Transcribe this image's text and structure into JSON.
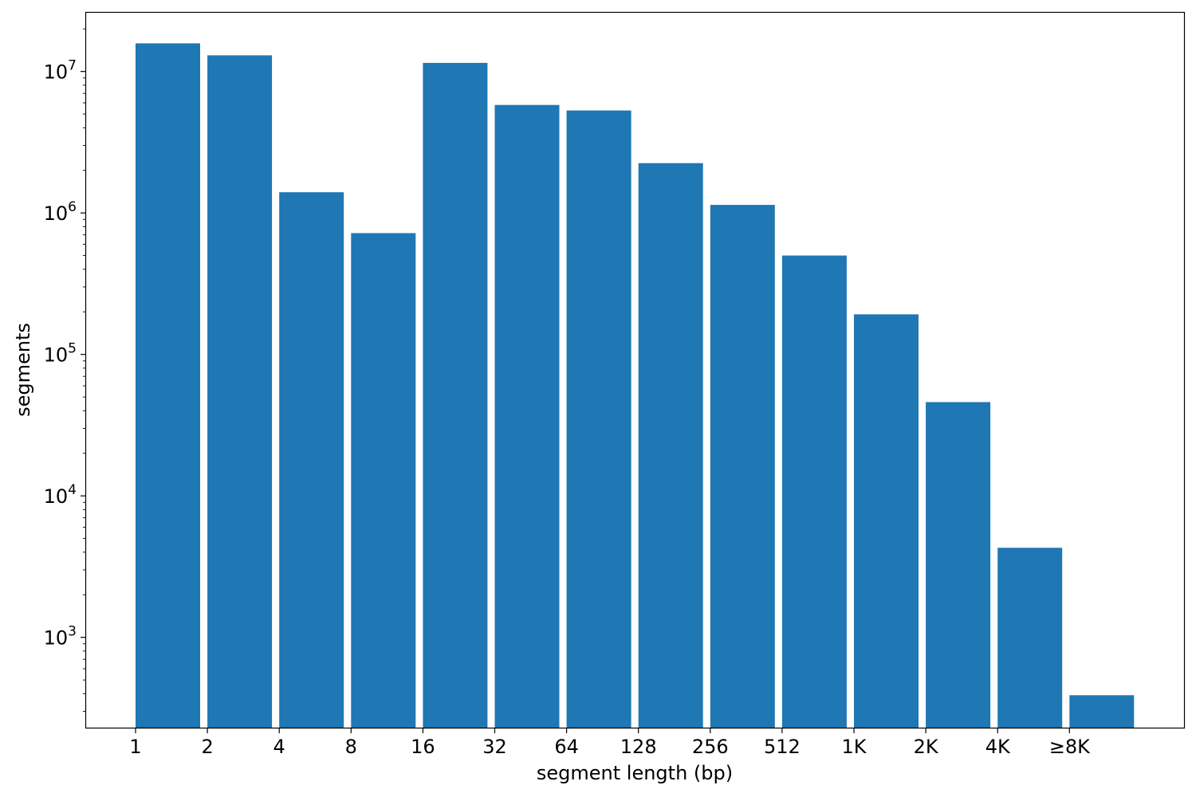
{
  "chart_data": {
    "type": "bar",
    "title": "",
    "xlabel": "segment length (bp)",
    "ylabel": "segments",
    "yscale": "log",
    "ylim": [
      230,
      26000000
    ],
    "grid": false,
    "bar_color": "#1f77b4",
    "x_tick_labels": [
      "1",
      "2",
      "4",
      "8",
      "16",
      "32",
      "64",
      "128",
      "256",
      "512",
      "1K",
      "2K",
      "4K",
      "≥8K"
    ],
    "y_tick_labels": [
      {
        "value": 1000,
        "base": "10",
        "exp": "3"
      },
      {
        "value": 10000,
        "base": "10",
        "exp": "4"
      },
      {
        "value": 100000,
        "base": "10",
        "exp": "5"
      },
      {
        "value": 1000000,
        "base": "10",
        "exp": "6"
      },
      {
        "value": 10000000,
        "base": "10",
        "exp": "7"
      }
    ],
    "values": [
      15800000,
      13000000,
      1400000,
      720000,
      11500000,
      5800000,
      5300000,
      2250000,
      1140000,
      500000,
      192000,
      46000,
      4300,
      390
    ]
  }
}
